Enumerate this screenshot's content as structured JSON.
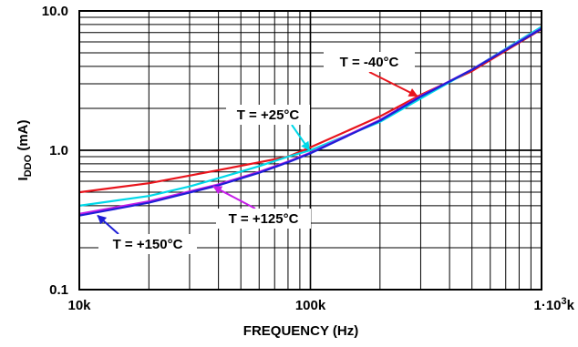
{
  "chart_data": {
    "type": "line",
    "xscale": "log",
    "yscale": "log",
    "xlim": [
      10000,
      1000000
    ],
    "ylim": [
      0.1,
      10
    ],
    "grid": true,
    "xlabel": "FREQUENCY (Hz)",
    "ylabel": {
      "main": "I",
      "sub": "DDO",
      "unit": " (mA)"
    },
    "xticks": [
      {
        "value": 10000,
        "label": "10k"
      },
      {
        "value": 100000,
        "label": "100k"
      },
      {
        "value": 1000000,
        "label": "1·10",
        "sup": "3",
        "suffix": "k"
      }
    ],
    "yticks": [
      {
        "value": 0.1,
        "label": "0.1"
      },
      {
        "value": 1,
        "label": "1.0"
      },
      {
        "value": 10,
        "label": "10.0"
      }
    ],
    "series": [
      {
        "name": "T = -40°C",
        "color": "#e8141c",
        "x": [
          10000,
          20000,
          40000,
          60000,
          80000,
          100000,
          200000,
          300000,
          500000,
          1000000
        ],
        "y": [
          0.5,
          0.58,
          0.72,
          0.82,
          0.9,
          1.05,
          1.75,
          2.5,
          3.7,
          7.4
        ]
      },
      {
        "name": "T = +25°C",
        "color": "#00d8e8",
        "x": [
          10000,
          20000,
          30000,
          40000,
          60000,
          80000,
          100000,
          200000,
          300000,
          500000,
          1000000
        ],
        "y": [
          0.4,
          0.47,
          0.55,
          0.63,
          0.77,
          0.9,
          1.0,
          1.6,
          2.35,
          3.8,
          7.7
        ]
      },
      {
        "name": "T = +125°C",
        "color": "#c51ee8",
        "x": [
          10000,
          20000,
          40000,
          60000,
          80000,
          100000,
          200000,
          300000,
          500000,
          1000000
        ],
        "y": [
          0.35,
          0.43,
          0.57,
          0.7,
          0.83,
          0.96,
          1.65,
          2.45,
          3.8,
          7.5
        ]
      },
      {
        "name": "T = +150°C",
        "color": "#1f1fd6",
        "x": [
          10000,
          20000,
          40000,
          60000,
          80000,
          100000,
          200000,
          300000,
          500000,
          1000000
        ],
        "y": [
          0.34,
          0.42,
          0.56,
          0.69,
          0.82,
          0.95,
          1.63,
          2.43,
          3.78,
          7.45
        ]
      }
    ],
    "annotations": [
      {
        "label": "T = -40°C",
        "series": 0
      },
      {
        "label": "T = +25°C",
        "series": 1
      },
      {
        "label": "T = +125°C",
        "series": 2
      },
      {
        "label": "T = +150°C",
        "series": 3
      }
    ]
  }
}
